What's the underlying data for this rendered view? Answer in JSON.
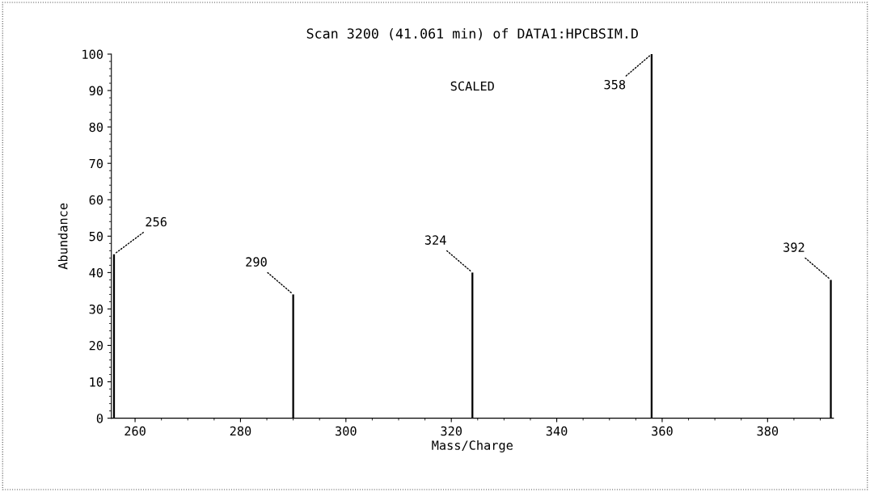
{
  "chart_data": {
    "type": "bar",
    "title": "Scan 3200 (41.061 min) of DATA1:HPCBSIM.D",
    "xlabel": "Mass/Charge",
    "ylabel": "Abundance",
    "x": [
      256,
      290,
      324,
      358,
      392
    ],
    "values": [
      45,
      34,
      40,
      100,
      38
    ],
    "color": "#000000",
    "xlim": [
      255.5,
      392.5
    ],
    "xticks": [
      260,
      280,
      300,
      320,
      340,
      360,
      380
    ],
    "ylim": [
      0,
      100
    ],
    "yticks": [
      0,
      10,
      20,
      30,
      40,
      50,
      60,
      70,
      80,
      90,
      100
    ],
    "grid": false,
    "annotations": [
      "SCALED",
      {
        "text": "256",
        "x": 256,
        "y": 45
      },
      {
        "text": "290",
        "x": 290,
        "y": 34
      },
      {
        "text": "324",
        "x": 324,
        "y": 40
      },
      {
        "text": "358",
        "x": 358,
        "y": 100
      },
      {
        "text": "392",
        "x": 392,
        "y": 38
      }
    ]
  }
}
